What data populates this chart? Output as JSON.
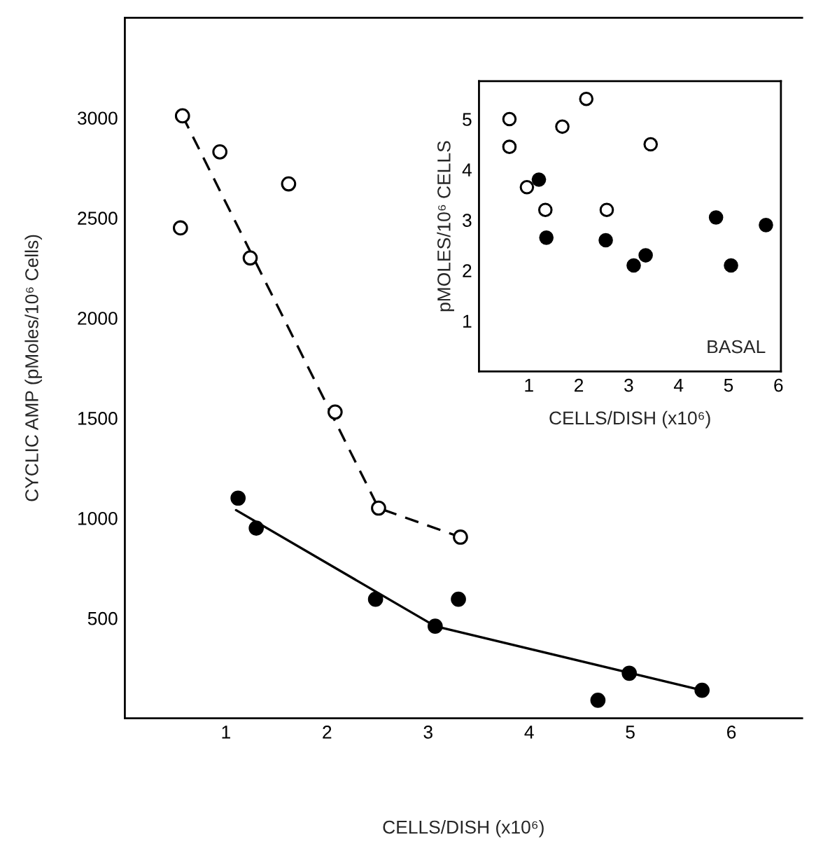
{
  "chart_data": [
    {
      "type": "scatter",
      "xlabel": "CELLS/DISH (x10⁶)",
      "ylabel": "CYCLIC AMP (pMoles/10⁶ Cells)",
      "xlim": [
        0,
        6.7
      ],
      "ylim": [
        0,
        3500
      ],
      "xticks": [
        1,
        2,
        3,
        4,
        5,
        6
      ],
      "yticks": [
        500,
        1000,
        1500,
        2000,
        2500,
        3000
      ],
      "grid": false,
      "legend": false,
      "series": [
        {
          "marker": "circle",
          "color": "#ffffff",
          "x": [
            0.57,
            0.55,
            0.94,
            1.62,
            1.24,
            2.08,
            2.51,
            3.32
          ],
          "values": [
            3010,
            2450,
            2830,
            2670,
            2300,
            1530,
            1050,
            905
          ]
        },
        {
          "marker": "circle",
          "color": "#000000",
          "x": [
            1.12,
            1.3,
            2.48,
            3.3,
            3.07,
            4.99,
            5.71,
            4.68
          ],
          "values": [
            1100,
            950,
            595,
            595,
            460,
            225,
            140,
            90
          ]
        },
        {
          "type": "line",
          "color": "#000000",
          "line_style": "dashed",
          "x": [
            0.57,
            2.51,
            3.32
          ],
          "values": [
            3010,
            1050,
            905
          ]
        },
        {
          "type": "line",
          "color": "#000000",
          "line_style": "solid",
          "x": [
            1.1,
            3.07,
            5.71
          ],
          "values": [
            1040,
            460,
            140
          ]
        }
      ]
    },
    {
      "type": "scatter",
      "xlabel": "CELLS/DISH (x10⁶)",
      "ylabel": "pMOLES/10⁶ CELLS",
      "xlim": [
        0,
        6.05
      ],
      "ylim": [
        0,
        5.75
      ],
      "xticks": [
        1,
        2,
        3,
        4,
        5,
        6
      ],
      "yticks": [
        1,
        2,
        3,
        4,
        5
      ],
      "grid": false,
      "legend": false,
      "marker": "circle",
      "annotations": [
        "BASAL"
      ],
      "series": [
        {
          "color": "#ffffff",
          "x": [
            0.61,
            0.61,
            0.96,
            1.33,
            1.67,
            2.15,
            2.56,
            3.44
          ],
          "values": [
            5.0,
            4.45,
            3.65,
            3.2,
            4.85,
            5.4,
            3.2,
            4.5
          ]
        },
        {
          "color": "#000000",
          "x": [
            1.2,
            1.35,
            2.54,
            3.1,
            3.34,
            4.75,
            5.05,
            5.75
          ],
          "values": [
            3.8,
            2.65,
            2.6,
            2.1,
            2.3,
            3.05,
            2.1,
            2.9
          ]
        }
      ]
    }
  ]
}
